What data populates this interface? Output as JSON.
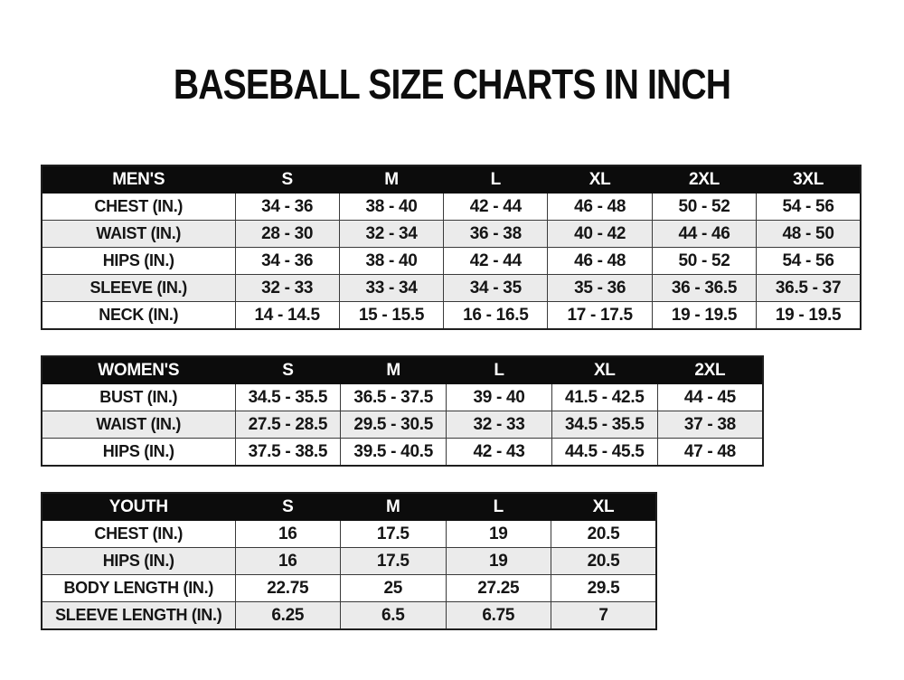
{
  "page": {
    "title": "BASEBALL SIZE CHARTS IN INCH"
  },
  "colors": {
    "header_bg": "#0c0c0c",
    "header_text": "#ffffff",
    "row_alt_bg": "#ebebeb",
    "border": "#3a3a3a",
    "text": "#151515",
    "background": "#ffffff"
  },
  "chart_data": [
    {
      "type": "table",
      "title": "MEN'S",
      "columns": [
        "MEN'S",
        "S",
        "M",
        "L",
        "XL",
        "2XL",
        "3XL"
      ],
      "rows": [
        {
          "label": "CHEST (IN.)",
          "values": [
            "34 - 36",
            "38 - 40",
            "42 - 44",
            "46 - 48",
            "50 - 52",
            "54 - 56"
          ]
        },
        {
          "label": "WAIST (IN.)",
          "values": [
            "28 - 30",
            "32 - 34",
            "36 - 38",
            "40 - 42",
            "44 - 46",
            "48 - 50"
          ]
        },
        {
          "label": "HIPS (IN.)",
          "values": [
            "34 - 36",
            "38 - 40",
            "42 - 44",
            "46 - 48",
            "50 - 52",
            "54 - 56"
          ]
        },
        {
          "label": "SLEEVE (IN.)",
          "values": [
            "32 - 33",
            "33 - 34",
            "34 - 35",
            "35 - 36",
            "36 - 36.5",
            "36.5 - 37"
          ]
        },
        {
          "label": "NECK (IN.)",
          "values": [
            "14 - 14.5",
            "15 - 15.5",
            "16 - 16.5",
            "17 - 17.5",
            "19 - 19.5",
            "19 - 19.5"
          ]
        }
      ]
    },
    {
      "type": "table",
      "title": "WOMEN'S",
      "columns": [
        "WOMEN'S",
        "S",
        "M",
        "L",
        "XL",
        "2XL"
      ],
      "rows": [
        {
          "label": "BUST (IN.)",
          "values": [
            "34.5 - 35.5",
            "36.5 - 37.5",
            "39 - 40",
            "41.5 - 42.5",
            "44 - 45"
          ]
        },
        {
          "label": "WAIST (IN.)",
          "values": [
            "27.5 - 28.5",
            "29.5 - 30.5",
            "32 - 33",
            "34.5 - 35.5",
            "37 - 38"
          ]
        },
        {
          "label": "HIPS (IN.)",
          "values": [
            "37.5 - 38.5",
            "39.5 - 40.5",
            "42 - 43",
            "44.5 - 45.5",
            "47 - 48"
          ]
        }
      ]
    },
    {
      "type": "table",
      "title": "YOUTH",
      "columns": [
        "YOUTH",
        "S",
        "M",
        "L",
        "XL"
      ],
      "rows": [
        {
          "label": "CHEST (IN.)",
          "values": [
            "16",
            "17.5",
            "19",
            "20.5"
          ]
        },
        {
          "label": "HIPS (IN.)",
          "values": [
            "16",
            "17.5",
            "19",
            "20.5"
          ]
        },
        {
          "label": "BODY LENGTH (IN.)",
          "values": [
            "22.75",
            "25",
            "27.25",
            "29.5"
          ]
        },
        {
          "label": "SLEEVE LENGTH (IN.)",
          "values": [
            "6.25",
            "6.5",
            "6.75",
            "7"
          ]
        }
      ]
    }
  ]
}
